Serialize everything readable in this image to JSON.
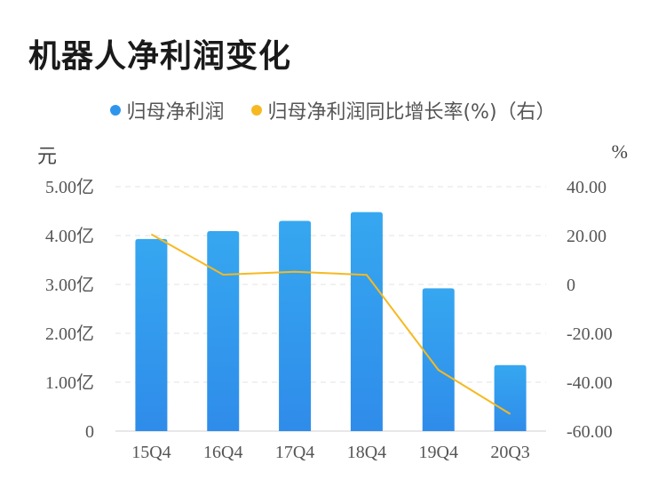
{
  "title": "机器人净利润变化",
  "legend": {
    "series1": "归母净利润",
    "series2": "归母净利润同比增长率(%)（右）"
  },
  "units": {
    "left": "元",
    "right": "%"
  },
  "colors": {
    "bar": "#2f95ec",
    "bar_top": "#36a7f0",
    "line": "#f6b921",
    "grid": "#e3e3e3"
  },
  "chart_data": {
    "type": "bar",
    "title": "机器人净利润变化",
    "categories": [
      "15Q4",
      "16Q4",
      "17Q4",
      "18Q4",
      "19Q4",
      "20Q3"
    ],
    "series": [
      {
        "name": "归母净利润",
        "type": "bar",
        "axis": "left",
        "values": [
          3.93,
          4.09,
          4.3,
          4.48,
          2.92,
          1.35
        ]
      },
      {
        "name": "归母净利润同比增长率(%)（右）",
        "type": "line",
        "axis": "right",
        "values": [
          20.5,
          4.0,
          5.2,
          3.9,
          -35.0,
          -53.0
        ]
      }
    ],
    "left_axis": {
      "unit": "元",
      "ylim": [
        0,
        5
      ],
      "ticks": [
        "0",
        "1.00亿",
        "2.00亿",
        "3.00亿",
        "4.00亿",
        "5.00亿"
      ]
    },
    "right_axis": {
      "unit": "%",
      "ylim": [
        -60,
        40
      ],
      "ticks": [
        "-60.00",
        "-40.00",
        "-20.00",
        "0",
        "20.00",
        "40.00"
      ]
    },
    "grid": true,
    "legend_position": "top"
  }
}
